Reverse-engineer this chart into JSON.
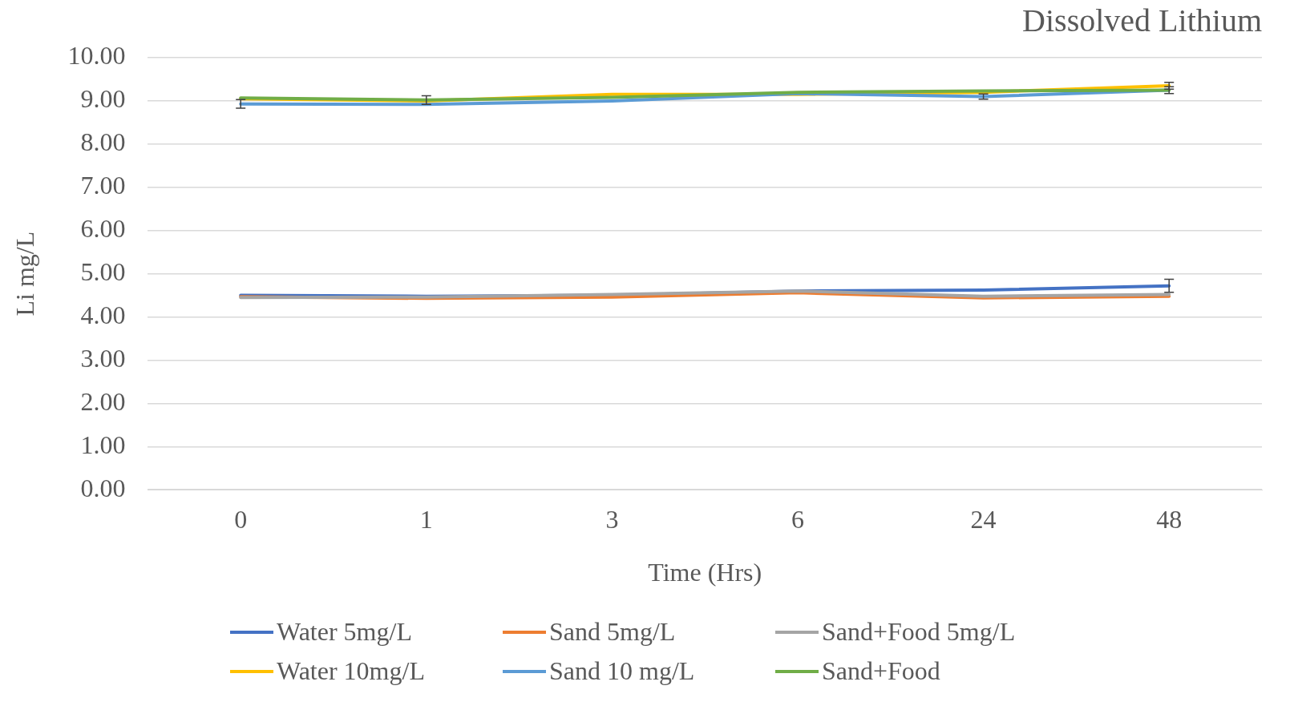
{
  "chart_data": {
    "type": "line",
    "title": "Dissolved Lithium",
    "xlabel": "Time (Hrs)",
    "ylabel": "Li mg/L",
    "categories": [
      "0",
      "1",
      "3",
      "6",
      "24",
      "48"
    ],
    "series": [
      {
        "name": "Water 5mg/L",
        "color": "#4472c4",
        "values": [
          4.5,
          4.48,
          4.5,
          4.6,
          4.62,
          4.72
        ],
        "errors": [
          null,
          null,
          null,
          null,
          null,
          0.15
        ]
      },
      {
        "name": "Sand 5mg/L",
        "color": "#ed7d31",
        "values": [
          4.47,
          4.43,
          4.46,
          4.56,
          4.44,
          4.48
        ]
      },
      {
        "name": "Sand+Food 5mg/L",
        "color": "#a5a5a5",
        "values": [
          4.45,
          4.46,
          4.52,
          4.6,
          4.48,
          4.52
        ]
      },
      {
        "name": "Water 10mg/L",
        "color": "#ffc000",
        "values": [
          9.05,
          9.0,
          9.15,
          9.15,
          9.2,
          9.35
        ],
        "errors": [
          null,
          null,
          null,
          null,
          null,
          0.08
        ]
      },
      {
        "name": "Sand 10 mg/L",
        "color": "#5b9bd5",
        "values": [
          8.93,
          8.92,
          9.0,
          9.17,
          9.1,
          9.25
        ],
        "errors": [
          0.1,
          null,
          null,
          null,
          0.06,
          0.08
        ]
      },
      {
        "name": "Sand+Food",
        "color": "#70ad47",
        "values": [
          9.07,
          9.02,
          9.08,
          9.2,
          9.23,
          9.25
        ],
        "errors": [
          null,
          0.1,
          null,
          null,
          null,
          null
        ]
      }
    ],
    "ylim": [
      0,
      10
    ],
    "yticks": [
      {
        "value": 0,
        "label": "0.00"
      },
      {
        "value": 1,
        "label": "1.00"
      },
      {
        "value": 2,
        "label": "2.00"
      },
      {
        "value": 3,
        "label": "3.00"
      },
      {
        "value": 4,
        "label": "4.00"
      },
      {
        "value": 5,
        "label": "5.00"
      },
      {
        "value": 6,
        "label": "6.00"
      },
      {
        "value": 7,
        "label": "7.00"
      },
      {
        "value": 8,
        "label": "8.00"
      },
      {
        "value": 9,
        "label": "9.00"
      },
      {
        "value": 10,
        "label": "10.00"
      }
    ],
    "grid": "y",
    "legend": "bottom",
    "marker": "none",
    "line_style": "solid"
  }
}
